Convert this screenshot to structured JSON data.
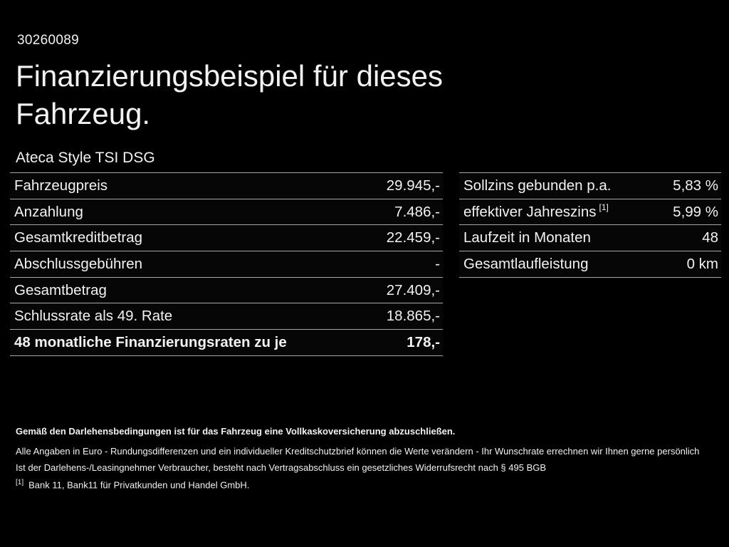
{
  "page": {
    "background_color": "#000000",
    "text_color": "#f2f2f2",
    "divider_color": "#a8a8a8"
  },
  "header": {
    "document_id": "30260089",
    "title": "Finanzierungsbeispiel für dieses Fahrzeug.",
    "vehicle_model": "Ateca Style TSI DSG"
  },
  "financing_table": {
    "rows": [
      {
        "label": "Fahrzeugpreis",
        "value": "29.945,-"
      },
      {
        "label": "Anzahlung",
        "value": "7.486,-"
      },
      {
        "label": "Gesamtkreditbetrag",
        "value": "22.459,-"
      },
      {
        "label": "Abschlussgebühren",
        "value": "-"
      },
      {
        "label": "Gesamtbetrag",
        "value": "27.409,-"
      },
      {
        "label": "Schlussrate als 49. Rate",
        "value": "18.865,-"
      },
      {
        "label": "48 monatliche Finanzierungsraten zu je",
        "value": "178,-"
      }
    ]
  },
  "conditions_table": {
    "rows": [
      {
        "label": "Sollzins gebunden p.a.",
        "value": "5,83 %"
      },
      {
        "label": "effektiver Jahreszins",
        "footnote_marker": "[1]",
        "value": "5,99 %"
      },
      {
        "label": "Laufzeit in Monaten",
        "value": "48"
      },
      {
        "label": "Gesamtlaufleistung",
        "value": "0 km"
      }
    ]
  },
  "footer": {
    "insurance_note": "Gemäß den Darlehensbedingungen ist für das Fahrzeug eine Vollkaskoversicherung abzuschließen.",
    "disclaimer_line_1": "Alle Angaben in Euro - Rundungsdifferenzen und ein individueller Kreditschutzbrief können die Werte verändern - Ihr Wunschrate errechnen wir Ihnen gerne persönlich",
    "disclaimer_line_2": "Ist der Darlehens-/Leasingnehmer Verbraucher, besteht nach Vertragsabschluss ein gesetzliches Widerrufsrecht nach § 495 BGB",
    "footnote_marker": "[1]",
    "footnote_text": "Bank 11, Bank11 für Privatkunden und Handel GmbH."
  }
}
